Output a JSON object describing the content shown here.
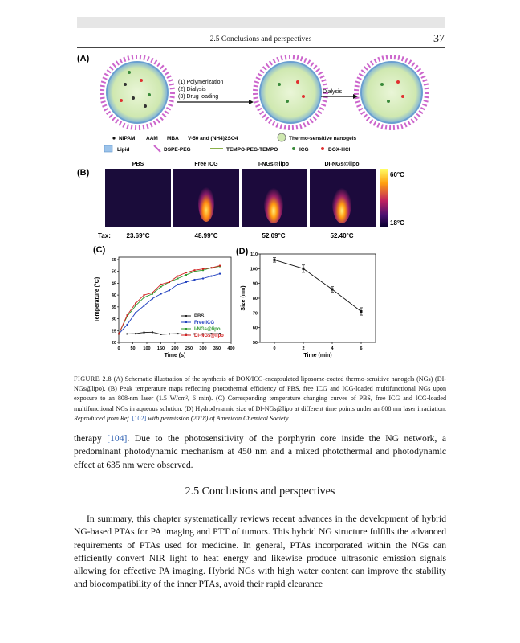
{
  "header": {
    "section": "2.5 Conclusions and perspectives",
    "page_number": "37"
  },
  "figure": {
    "panel_a": {
      "label": "(A)",
      "steps": [
        "(1) Polymerization",
        "(2) Dialysis",
        "(3) Drug loading"
      ],
      "dialysis": "Dialysis",
      "legend_row1": [
        "NIPAM",
        "AAM",
        "MBA",
        "V-50 and (NH4)2SO4"
      ],
      "legend_row1_right": "Thermo-sensitive nanogels",
      "legend_row2": [
        "Lipid",
        "DSPE-PEG",
        "TEMPO-PEG-TEMPO",
        "ICG",
        "DOX-HCl"
      ]
    },
    "panel_b": {
      "label": "(B)",
      "groups": [
        "PBS",
        "Free ICG",
        "I-NGs@lipo",
        "DI-NGs@lipo"
      ],
      "tax_label": "Tax:",
      "tmax": [
        "23.69°C",
        "48.99°C",
        "52.09°C",
        "52.40°C"
      ],
      "scale_max": "60°C",
      "scale_min": "18°C"
    }
  },
  "chart_data": [
    {
      "type": "line",
      "panel": "(C)",
      "xlabel": "Time (s)",
      "ylabel": "Temperature (°C)",
      "xlim": [
        0,
        400
      ],
      "ylim": [
        20,
        56
      ],
      "xticks": [
        0,
        50,
        100,
        150,
        200,
        250,
        300,
        350,
        400
      ],
      "yticks": [
        20,
        25,
        30,
        35,
        40,
        45,
        50,
        55
      ],
      "legend_position": "bottom-right",
      "x": [
        0,
        30,
        60,
        90,
        120,
        150,
        180,
        210,
        240,
        270,
        300,
        330,
        360
      ],
      "series": [
        {
          "name": "PBS",
          "color": "#222222",
          "values": [
            23.6,
            23.6,
            23.7,
            24.2,
            24.3,
            23.4,
            23.6,
            23.7,
            23.5,
            23.6,
            23.6,
            23.7,
            23.7
          ]
        },
        {
          "name": "Free ICG",
          "color": "#1f3fbf",
          "values": [
            23.6,
            27.5,
            32.5,
            35.5,
            38.5,
            40.5,
            42.0,
            44.5,
            45.5,
            46.5,
            47.0,
            48.0,
            49.0
          ]
        },
        {
          "name": "I-NGs@lipo",
          "color": "#2f9a2f",
          "values": [
            23.6,
            31.0,
            35.5,
            39.0,
            40.5,
            43.5,
            45.5,
            47.0,
            48.5,
            50.0,
            50.5,
            51.5,
            52.1
          ]
        },
        {
          "name": "DI-NGs@lipo",
          "color": "#d22222",
          "values": [
            23.6,
            31.5,
            36.5,
            40.0,
            41.0,
            44.5,
            45.5,
            48.0,
            49.5,
            50.5,
            51.0,
            51.5,
            52.4
          ]
        }
      ]
    },
    {
      "type": "line",
      "panel": "(D)",
      "xlabel": "Time (min)",
      "ylabel": "Size (nm)",
      "xlim": [
        -1,
        7
      ],
      "ylim": [
        50,
        110
      ],
      "xticks": [
        0,
        2,
        4,
        6
      ],
      "yticks": [
        50,
        60,
        70,
        80,
        90,
        100,
        110
      ],
      "x": [
        0,
        2,
        4,
        6
      ],
      "series": [
        {
          "values": [
            106,
            100,
            86,
            71
          ],
          "errors": [
            1.5,
            2.5,
            1.8,
            2.5
          ],
          "color": "#111111"
        }
      ]
    }
  ],
  "caption": {
    "label": "FIGURE 2.8",
    "text": "(A) Schematic illustration of the synthesis of DOX/ICG-encapsulated liposome-coated thermo-sensitive nanogels (NGs) (DI-NGs@lipo). (B) Peak temperature maps reflecting photothermal efficiency of PBS, free ICG and ICG-loaded multifunctional NGs upon exposure to an 808-nm laser (1.5 W/cm², 6 min). (C) Corresponding temperature changing curves of PBS, free ICG and ICG-loaded multifunctional NGs in aqueous solution. (D) Hydrodynamic size of DI-NGs@lipo at different time points under an 808 nm laser irradiation.",
    "reproduced": "Reproduced from Ref.",
    "ref": "[102]",
    "permission": "with permission (2018) of American Chemical Society."
  },
  "para1": {
    "lead": "therapy",
    "ref": "[104]",
    "rest": ". Due to the photosensitivity of the porphyrin core inside the NG network, a predominant photodynamic mechanism at 450 nm and a mixed photothermal and photodynamic effect at 635 nm were observed."
  },
  "section_title": "2.5 Conclusions and perspectives",
  "para2": "In summary, this chapter systematically reviews recent advances in the development of hybrid NG-based PTAs for PA imaging and PTT of tumors. This hybrid NG structure fulfills the advanced requirements of PTAs used for medicine. In general, PTAs incorporated within the NGs can efficiently convert NIR light to heat energy and likewise produce ultrasonic emission signals allowing for effective PA imaging. Hybrid NGs with high water content can improve the stability and biocompatibility of the inner PTAs, avoid their rapid clearance"
}
